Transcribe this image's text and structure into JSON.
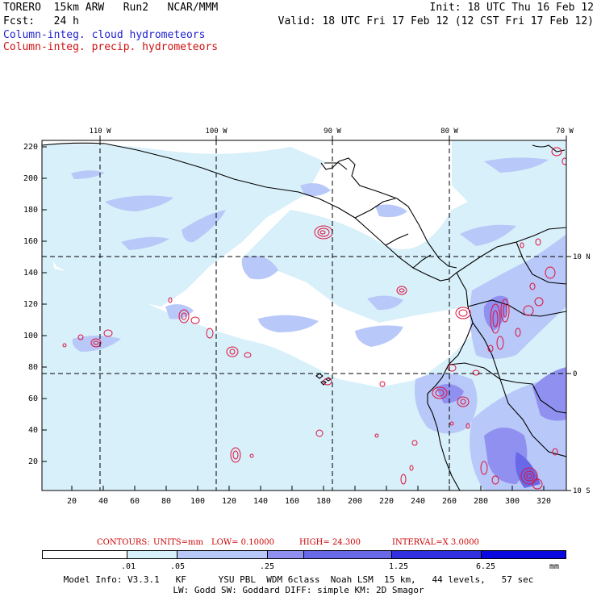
{
  "header": {
    "model": "TORERO",
    "resolution": "15km ARW",
    "run": "Run2",
    "org": "NCAR/MMM",
    "init": "Init: 18 UTC Thu 16 Feb 12",
    "fcst_label": "Fcst:",
    "fcst_value": "24 h",
    "valid": "Valid: 18 UTC Fri 17 Feb 12 (12 CST Fri 17 Feb 12)",
    "field_cloud": "Column-integ. cloud hydrometeors",
    "field_precip": "Column-integ. precip. hydrometeors"
  },
  "colors": {
    "cloud_text": "#2020d0",
    "precip_text": "#d01010",
    "contour": "#e0103c",
    "coast": "#000000"
  },
  "top_axis": [
    "110 W",
    "100 W",
    "90 W",
    "80 W",
    "70 W"
  ],
  "right_axis": [
    "10 N",
    "0",
    "10 S"
  ],
  "left_ticks": [
    "220",
    "200",
    "180",
    "160",
    "140",
    "120",
    "100",
    "80",
    "60",
    "40",
    "20"
  ],
  "bottom_ticks": [
    "20",
    "40",
    "60",
    "80",
    "100",
    "120",
    "140",
    "160",
    "180",
    "200",
    "220",
    "240",
    "260",
    "280",
    "300",
    "320"
  ],
  "contour_info": {
    "label": "CONTOURS:",
    "units": "UNITS=mm",
    "low": "LOW= 0.10000",
    "high": "HIGH= 24.300",
    "interval": "INTERVAL=X 3.0000"
  },
  "colorbar": {
    "labels": [
      ".01",
      ".05",
      ".25",
      "1.25",
      "6.25"
    ],
    "unit": "mm",
    "colors": [
      "#ffffff",
      "#d8f0fa",
      "#b8c8f8",
      "#9090f0",
      "#6868e8",
      "#3030e0",
      "#0a0ae0"
    ]
  },
  "footer": {
    "line1": "Model Info: V3.3.1   KF      YSU PBL  WDM 6class  Noah LSM  15 km,   44 levels,   57 sec",
    "line2": "LW: Godd SW: Goddard DIFF: simple KM: 2D Smagor"
  }
}
